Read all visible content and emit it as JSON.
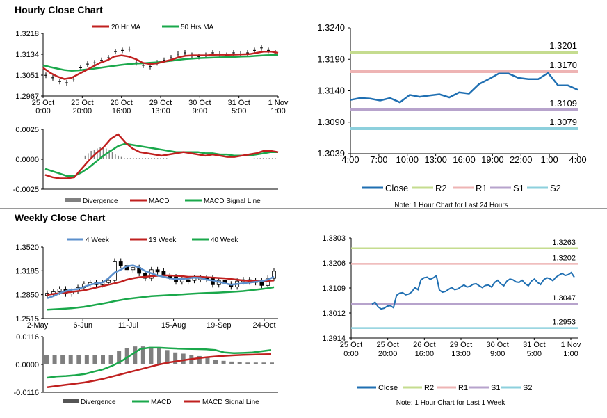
{
  "titles": {
    "hourly": "Hourly Close Chart",
    "weekly": "Weekly Close Chart"
  },
  "colors": {
    "ma_short": "#c0201f",
    "ma_long": "#1aa84b",
    "ma_4wk": "#5b8fcc",
    "close": "#1f6fb2",
    "R2": "#c5dc8f",
    "R1": "#eeb4b4",
    "S1": "#b7a3cc",
    "S2": "#8dd0dd",
    "divergence": "#808080",
    "macd": "#c0201f",
    "signal": "#1aa84b"
  },
  "chart_data": [
    {
      "id": "hourly_price",
      "type": "line",
      "legend": [
        "20 Hr MA",
        "50 Hrs MA"
      ],
      "yticks": [
        "1.3218",
        "1.3134",
        "1.3051",
        "1.2967"
      ],
      "ylim": [
        1.2967,
        1.3218
      ],
      "xticks": [
        "25 Oct\n0:00",
        "25 Oct\n20:00",
        "26 Oct\n16:00",
        "29 Oct\n13:00",
        "30 Oct\n9:00",
        "31 Oct\n5:00",
        "1 Nov\n1:00"
      ],
      "series": [
        {
          "name": "Price",
          "values": [
            1.305,
            1.304,
            1.3025,
            1.302,
            1.3035,
            1.308,
            1.3095,
            1.31,
            1.311,
            1.312,
            1.3145,
            1.315,
            1.3155,
            1.31,
            1.309,
            1.3085,
            1.31,
            1.311,
            1.312,
            1.3135,
            1.314,
            1.313,
            1.3125,
            1.313,
            1.314,
            1.3135,
            1.313,
            1.314,
            1.3135,
            1.314,
            1.315,
            1.316,
            1.315,
            1.314
          ]
        },
        {
          "name": "20 Hr MA",
          "values": [
            1.308,
            1.306,
            1.3045,
            1.3035,
            1.304,
            1.3055,
            1.307,
            1.3085,
            1.31,
            1.311,
            1.3125,
            1.313,
            1.3125,
            1.3115,
            1.31,
            1.3095,
            1.3098,
            1.3105,
            1.3112,
            1.3122,
            1.3128,
            1.313,
            1.313,
            1.313,
            1.3132,
            1.3133,
            1.3132,
            1.3133,
            1.3134,
            1.3135,
            1.314,
            1.3145,
            1.3145,
            1.314
          ]
        },
        {
          "name": "50 Hrs MA",
          "values": [
            1.309,
            1.3083,
            1.3077,
            1.3071,
            1.3068,
            1.307,
            1.3073,
            1.3076,
            1.308,
            1.3084,
            1.3088,
            1.3092,
            1.3095,
            1.3097,
            1.3098,
            1.31,
            1.3102,
            1.3105,
            1.3108,
            1.3112,
            1.3115,
            1.3117,
            1.3119,
            1.312,
            1.3121,
            1.3122,
            1.3123,
            1.3124,
            1.3125,
            1.3126,
            1.3128,
            1.313,
            1.3131,
            1.3132
          ]
        }
      ]
    },
    {
      "id": "hourly_macd",
      "type": "bar",
      "yticks": [
        "0.0025",
        "0.0000",
        "-0.0025"
      ],
      "ylim": [
        -0.0025,
        0.0025
      ],
      "legend": [
        "Divergence",
        "MACD",
        "MACD Signal Line"
      ],
      "series": [
        {
          "name": "Divergence",
          "values": [
            0,
            0,
            0,
            0,
            0,
            0,
            0,
            0,
            0,
            0,
            0,
            0,
            0,
            0.0003,
            0.0005,
            0.0007,
            0.0008,
            0.0009,
            0.001,
            0.001,
            0.0009,
            0.0008,
            0.0006,
            0.0004,
            0.0003,
            0.0002,
            0.0001,
            0.0001,
            0.0001,
            0.0001,
            0.0001,
            0.0001,
            0.0001,
            0.0001,
            0.0001,
            0.0001,
            0.0001,
            0.0001,
            0.0001,
            0.0001,
            0.0001,
            0,
            0,
            0,
            0,
            0,
            0,
            0,
            0,
            0,
            0,
            0,
            0,
            0,
            0,
            0,
            0,
            0,
            0,
            0,
            0,
            0,
            0,
            0,
            0,
            0,
            0,
            0,
            0,
            0.0001,
            0.0001,
            0.0001,
            0.0001,
            0.0001,
            0.0001,
            0.0001,
            0.0001
          ]
        },
        {
          "name": "MACD",
          "values": [
            -0.0013,
            -0.0015,
            -0.0016,
            -0.0016,
            -0.0015,
            -0.0008,
            -0.0001,
            0.0005,
            0.001,
            0.0017,
            0.0021,
            0.0014,
            0.0009,
            0.0006,
            0.0005,
            0.0004,
            0.0003,
            0.0004,
            0.0005,
            0.0006,
            0.0005,
            0.0004,
            0.0003,
            0.0004,
            0.0003,
            0.0002,
            0.0002,
            0.0003,
            0.0004,
            0.0005,
            0.0007,
            0.0007,
            0.0006
          ]
        },
        {
          "name": "MACD Signal Line",
          "values": [
            -0.0008,
            -0.001,
            -0.0012,
            -0.0014,
            -0.0014,
            -0.0011,
            -0.0007,
            -0.0002,
            0.0003,
            0.0007,
            0.0011,
            0.0013,
            0.0012,
            0.0011,
            0.001,
            0.0009,
            0.0008,
            0.0007,
            0.0006,
            0.0006,
            0.0006,
            0.0006,
            0.0005,
            0.0005,
            0.0004,
            0.0004,
            0.0003,
            0.0003,
            0.0003,
            0.0004,
            0.0005,
            0.0006,
            0.0006
          ]
        }
      ]
    },
    {
      "id": "hourly_24h",
      "type": "line",
      "yticks": [
        "1.3240",
        "1.3190",
        "1.3140",
        "1.3090",
        "1.3039"
      ],
      "ylim": [
        1.3039,
        1.324
      ],
      "xticks": [
        "4:00",
        "7:00",
        "10:00",
        "13:00",
        "16:00",
        "19:00",
        "22:00",
        "1:00",
        "4:00"
      ],
      "levels": [
        {
          "name": "R2",
          "value": 1.3201,
          "label": "1.3201"
        },
        {
          "name": "R1",
          "value": 1.317,
          "label": "1.3170"
        },
        {
          "name": "S1",
          "value": 1.3109,
          "label": "1.3109"
        },
        {
          "name": "S2",
          "value": 1.3079,
          "label": "1.3079"
        }
      ],
      "series": [
        {
          "name": "Close",
          "values": [
            1.3125,
            1.3128,
            1.3127,
            1.3124,
            1.3128,
            1.3121,
            1.3133,
            1.313,
            1.3132,
            1.3134,
            1.3129,
            1.3137,
            1.3135,
            1.315,
            1.3158,
            1.3167,
            1.3167,
            1.316,
            1.3158,
            1.3158,
            1.3168,
            1.3148,
            1.3148,
            1.3141
          ]
        }
      ],
      "legend": [
        "Close",
        "R2",
        "R1",
        "S1",
        "S2"
      ],
      "note": "Note: 1 Hour Chart for Last 24 Hours"
    },
    {
      "id": "weekly_price",
      "type": "line",
      "legend": [
        "4 Week",
        "13 Week",
        "40 Week"
      ],
      "yticks": [
        "1.3520",
        "1.3185",
        "1.2850",
        "1.2515"
      ],
      "ylim": [
        1.2515,
        1.352
      ],
      "xticks": [
        "2-May",
        "6-Jun",
        "11-Jul",
        "15-Aug",
        "19-Sep",
        "24-Oct"
      ],
      "series": [
        {
          "name": "Close",
          "values": [
            1.287,
            1.289,
            1.293,
            1.286,
            1.29,
            1.295,
            1.3,
            1.302,
            1.301,
            1.302,
            1.305,
            1.332,
            1.326,
            1.32,
            1.323,
            1.315,
            1.308,
            1.32,
            1.318,
            1.312,
            1.31,
            1.303,
            1.306,
            1.305,
            1.308,
            1.309,
            1.308,
            1.299,
            1.305,
            1.3,
            1.296,
            1.304,
            1.306,
            1.303,
            1.305,
            1.298,
            1.308,
            1.318
          ]
        },
        {
          "name": "4 Week",
          "values": [
            1.28,
            1.283,
            1.287,
            1.29,
            1.292,
            1.293,
            1.296,
            1.299,
            1.301,
            1.302,
            1.308,
            1.316,
            1.32,
            1.325,
            1.326,
            1.323,
            1.318,
            1.315,
            1.312,
            1.31,
            1.308,
            1.307,
            1.307,
            1.308,
            1.309,
            1.3085,
            1.306,
            1.305,
            1.303,
            1.301,
            1.299,
            1.3,
            1.301,
            1.302,
            1.303,
            1.304,
            1.306,
            1.31
          ]
        },
        {
          "name": "13 Week",
          "values": [
            1.285,
            1.286,
            1.287,
            1.288,
            1.289,
            1.29,
            1.291,
            1.293,
            1.295,
            1.297,
            1.299,
            1.301,
            1.303,
            1.306,
            1.308,
            1.3095,
            1.31,
            1.311,
            1.3115,
            1.312,
            1.312,
            1.3115,
            1.311,
            1.31,
            1.31,
            1.31,
            1.3095,
            1.309,
            1.3085,
            1.308,
            1.307,
            1.306,
            1.305,
            1.3045,
            1.304,
            1.304,
            1.3045,
            1.305
          ]
        },
        {
          "name": "40 Week",
          "values": [
            1.264,
            1.2645,
            1.265,
            1.2655,
            1.266,
            1.267,
            1.268,
            1.2695,
            1.271,
            1.2725,
            1.274,
            1.276,
            1.2775,
            1.279,
            1.28,
            1.281,
            1.282,
            1.283,
            1.2835,
            1.284,
            1.2845,
            1.285,
            1.2855,
            1.286,
            1.2865,
            1.287,
            1.2873,
            1.2876,
            1.288,
            1.2885,
            1.289,
            1.2895,
            1.29,
            1.291,
            1.292,
            1.293,
            1.294,
            1.2955
          ]
        }
      ]
    },
    {
      "id": "weekly_macd",
      "type": "bar",
      "yticks": [
        "0.0116",
        "0.0000",
        "-0.0116"
      ],
      "ylim": [
        -0.0116,
        0.0116
      ],
      "legend": [
        "Divergence",
        "MACD",
        "MACD Signal Line"
      ],
      "series": [
        {
          "name": "Divergence",
          "values": [
            0.004,
            0.004,
            0.004,
            0.004,
            0.004,
            0.004,
            0.004,
            0.004,
            0.004,
            0.0055,
            0.0068,
            0.0075,
            0.0075,
            0.0073,
            0.0068,
            0.006,
            0.005,
            0.0045,
            0.004,
            0.0035,
            0.0028,
            0.002,
            0.0015,
            0.0012,
            0.001,
            0.0008,
            0.0008,
            0.0008,
            0.0008
          ]
        },
        {
          "name": "MACD",
          "values": [
            -0.0055,
            -0.005,
            -0.0048,
            -0.0045,
            -0.004,
            -0.003,
            -0.002,
            -0.0005,
            0.0015,
            0.004,
            0.0065,
            0.007,
            0.007,
            0.0068,
            0.0066,
            0.0065,
            0.0064,
            0.0063,
            0.006,
            0.005,
            0.0047,
            0.0048,
            0.005,
            0.0055,
            0.006
          ]
        },
        {
          "name": "MACD Signal Line",
          "values": [
            -0.0095,
            -0.009,
            -0.0085,
            -0.008,
            -0.0075,
            -0.0068,
            -0.006,
            -0.005,
            -0.004,
            -0.003,
            -0.002,
            -0.001,
            0.0,
            0.0008,
            0.0014,
            0.002,
            0.0025,
            0.003,
            0.0033,
            0.0036,
            0.0038,
            0.004,
            0.0041,
            0.0042,
            0.0043
          ]
        }
      ]
    },
    {
      "id": "weekly_hourly",
      "type": "line",
      "yticks": [
        "1.3303",
        "1.3206",
        "1.3109",
        "1.3012",
        "1.2914"
      ],
      "ylim": [
        1.2914,
        1.3303
      ],
      "xticks": [
        "25 Oct\n0:00",
        "25 Oct\n20:00",
        "26 Oct\n16:00",
        "29 Oct\n13:00",
        "30 Oct\n9:00",
        "31 Oct\n5:00",
        "1 Nov\n1:00"
      ],
      "levels": [
        {
          "name": "R2",
          "value": 1.3263,
          "label": "1.3263"
        },
        {
          "name": "R1",
          "value": 1.3202,
          "label": "1.3202"
        },
        {
          "name": "S1",
          "value": 1.3047,
          "label": "1.3047"
        },
        {
          "name": "S2",
          "value": 1.2953,
          "label": "1.2953"
        }
      ],
      "series": [
        {
          "name": "Close",
          "values": [
            1.3045,
            1.3035,
            1.303,
            1.304,
            1.308,
            1.309,
            1.3085,
            1.311,
            1.314,
            1.315,
            1.3148,
            1.31,
            1.3095,
            1.311,
            1.3105,
            1.312,
            1.3115,
            1.3125,
            1.311,
            1.312,
            1.313,
            1.3125,
            1.3135,
            1.314,
            1.313,
            1.3125,
            1.3135,
            1.313,
            1.314,
            1.3145,
            1.315,
            1.3165,
            1.316,
            1.315
          ]
        }
      ],
      "legend": [
        "Close",
        "R2",
        "R1",
        "S1",
        "S2"
      ],
      "note": "Note: 1 Hour Chart for Last 1 Week"
    }
  ]
}
